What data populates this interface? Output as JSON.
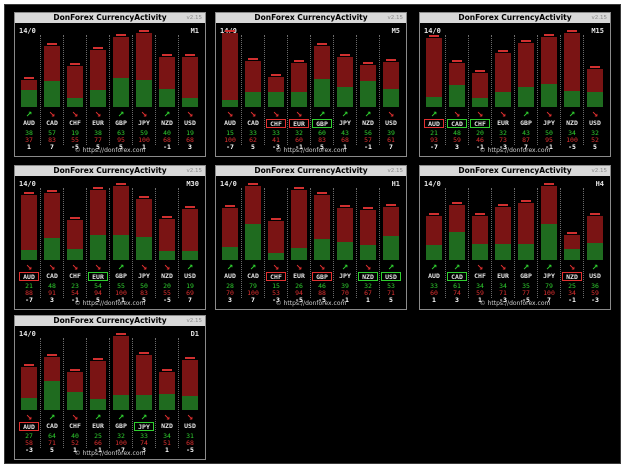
{
  "widget": {
    "title": "DonForex CurrencyActivity",
    "version": "v2.15",
    "date": "14/0",
    "footer": "© https://donforex.com"
  },
  "currencies": [
    "AUD",
    "CAD",
    "CHF",
    "EUR",
    "GBP",
    "JPY",
    "NZD",
    "USD"
  ],
  "colors": {
    "up": "#2fcf2f",
    "down": "#e03030",
    "bar_up": "#1f6b1f",
    "bar_down": "#7a1414"
  },
  "icons": {
    "up": "north-east-arrow-icon",
    "down": "south-east-arrow-icon"
  },
  "panels": [
    {
      "timeframe": "M1",
      "up": [
        "38",
        "57",
        "19",
        "38",
        "63",
        "59",
        "40",
        "19"
      ],
      "dn": [
        "37",
        "83",
        "55",
        "77",
        "95",
        "100",
        "68",
        "68"
      ],
      "net": [
        "1",
        "7",
        "-5",
        "5",
        "5",
        "1",
        "-1",
        "3"
      ],
      "arrows": [
        "up",
        "down",
        "down",
        "down",
        "up",
        "down",
        "up",
        "down"
      ],
      "boxes": [
        "",
        "",
        "",
        "",
        "",
        "",
        "",
        ""
      ]
    },
    {
      "timeframe": "M5",
      "up": [
        "15",
        "33",
        "33",
        "32",
        "60",
        "43",
        "56",
        "39"
      ],
      "dn": [
        "100",
        "62",
        "41",
        "60",
        "83",
        "68",
        "57",
        "61"
      ],
      "net": [
        "-7",
        "5",
        "-3",
        "-1",
        "5",
        "1",
        "-1",
        "7"
      ],
      "arrows": [
        "down",
        "down",
        "down",
        "down",
        "up",
        "up",
        "up",
        "down"
      ],
      "boxes": [
        "",
        "",
        "red",
        "red",
        "green",
        "",
        "",
        ""
      ]
    },
    {
      "timeframe": "M15",
      "up": [
        "21",
        "48",
        "20",
        "32",
        "43",
        "50",
        "34",
        "32"
      ],
      "dn": [
        "93",
        "59",
        "46",
        "73",
        "87",
        "95",
        "100",
        "52"
      ],
      "net": [
        "-7",
        "3",
        "-1",
        "-3",
        "7",
        "-1",
        "-5",
        "5"
      ],
      "arrows": [
        "up",
        "down",
        "down",
        "down",
        "up",
        "down",
        "up",
        "down"
      ],
      "boxes": [
        "red",
        "green",
        "green",
        "",
        "",
        "",
        "",
        ""
      ]
    },
    {
      "timeframe": "M30",
      "up": [
        "21",
        "48",
        "23",
        "54",
        "55",
        "50",
        "20",
        "19"
      ],
      "dn": [
        "88",
        "91",
        "54",
        "94",
        "100",
        "83",
        "55",
        "69"
      ],
      "net": [
        "-7",
        "3",
        "-1",
        "5",
        "-1",
        "5",
        "-5",
        "7"
      ],
      "arrows": [
        "down",
        "down",
        "down",
        "down",
        "up",
        "down",
        "down",
        "up"
      ],
      "boxes": [
        "red",
        "",
        "",
        "green",
        "",
        "",
        "",
        ""
      ]
    },
    {
      "timeframe": "H1",
      "up": [
        "28",
        "79",
        "15",
        "26",
        "46",
        "39",
        "32",
        "53"
      ],
      "dn": [
        "70",
        "100",
        "53",
        "94",
        "88",
        "70",
        "67",
        "71"
      ],
      "net": [
        "3",
        "7",
        "-3",
        "-5",
        "-5",
        "-1",
        "1",
        "5"
      ],
      "arrows": [
        "up",
        "up",
        "down",
        "down",
        "down",
        "up",
        "down",
        "up"
      ],
      "boxes": [
        "",
        "",
        "red",
        "",
        "red",
        "",
        "green",
        "green"
      ]
    },
    {
      "timeframe": "H4",
      "up": [
        "33",
        "61",
        "34",
        "34",
        "35",
        "79",
        "25",
        "36"
      ],
      "dn": [
        "60",
        "74",
        "59",
        "71",
        "77",
        "100",
        "34",
        "59"
      ],
      "net": [
        "1",
        "3",
        "1",
        "-3",
        "-5",
        "7",
        "-1",
        "-3"
      ],
      "arrows": [
        "up",
        "up",
        "down",
        "down",
        "up",
        "up",
        "down",
        "up"
      ],
      "boxes": [
        "",
        "green",
        "",
        "",
        "",
        "",
        "red",
        ""
      ]
    },
    {
      "timeframe": "D1",
      "up": [
        "27",
        "64",
        "40",
        "25",
        "32",
        "33",
        "34",
        "31"
      ],
      "dn": [
        "58",
        "71",
        "52",
        "66",
        "100",
        "74",
        "51",
        "68"
      ],
      "net": [
        "-3",
        "5",
        "1",
        "-1",
        "-7",
        "3",
        "1",
        "-5"
      ],
      "arrows": [
        "down",
        "up",
        "down",
        "up",
        "up",
        "up",
        "down",
        "down"
      ],
      "boxes": [
        "red",
        "",
        "",
        "",
        "",
        "green",
        "",
        ""
      ]
    }
  ]
}
